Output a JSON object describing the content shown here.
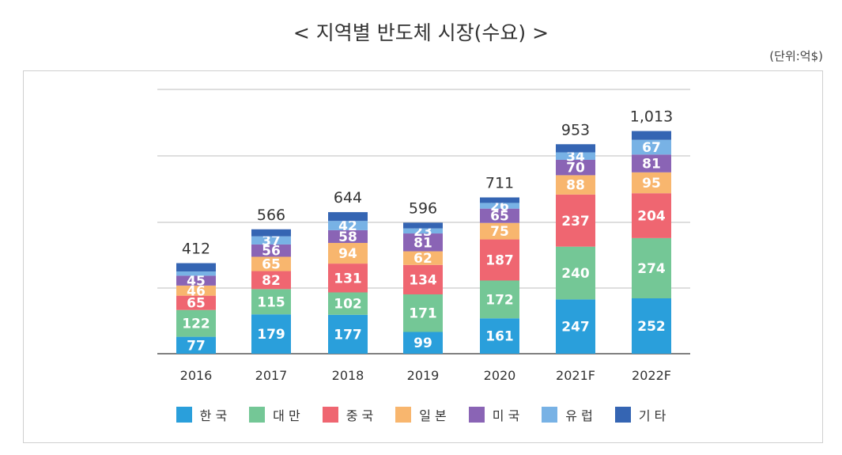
{
  "title": "< 지역별 반도체 시장(수요) >",
  "unit": "(단위:억$)",
  "chart_data": {
    "type": "stacked-bar",
    "title": "< 지역별 반도체 시장(수요) >",
    "categories": [
      "2016",
      "2017",
      "2018",
      "2019",
      "2020",
      "2021F",
      "2022F"
    ],
    "totals": [
      "412",
      "566",
      "644",
      "596",
      "711",
      "953",
      "1,013"
    ],
    "series": [
      {
        "name": "한국",
        "color": "#2a9fdb",
        "values": [
          77,
          179,
          177,
          99,
          161,
          247,
          252
        ]
      },
      {
        "name": "대만",
        "color": "#74c796",
        "values": [
          122,
          115,
          102,
          171,
          172,
          240,
          274
        ]
      },
      {
        "name": "중국",
        "color": "#ef6671",
        "values": [
          65,
          82,
          131,
          134,
          187,
          237,
          204
        ]
      },
      {
        "name": "일본",
        "color": "#f8b66e",
        "values": [
          46,
          65,
          94,
          62,
          75,
          88,
          95
        ]
      },
      {
        "name": "미국",
        "color": "#8a64b5",
        "values": [
          45,
          56,
          58,
          81,
          65,
          70,
          81
        ]
      },
      {
        "name": "유럽",
        "color": "#78b2e5",
        "values": [
          19,
          37,
          42,
          23,
          26,
          34,
          67
        ]
      },
      {
        "name": "기타",
        "color": "#3565b3",
        "values": [
          38,
          32,
          40,
          26,
          25,
          37,
          40
        ]
      }
    ],
    "labeled_series_count": [
      5,
      6,
      6,
      6,
      6,
      6,
      6
    ],
    "ylim": [
      0,
      1100
    ],
    "grid": true,
    "legend": "bottom"
  }
}
